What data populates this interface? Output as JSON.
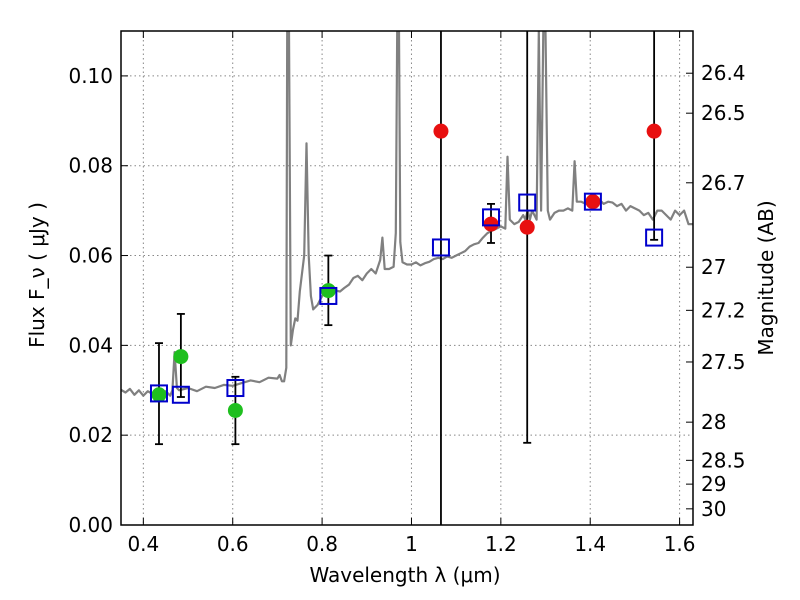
{
  "chart_data": {
    "type": "scatter",
    "xlabel": "Wavelength  λ (μm)",
    "ylabel": "Flux  F_ν  ( μJy )",
    "ylabel_right": "Magnitude (AB)",
    "xlim": [
      0.35,
      1.63
    ],
    "ylim": [
      0.0,
      0.11
    ],
    "grid": true,
    "x_ticks": [
      {
        "value": 0.4,
        "label": "0.4"
      },
      {
        "value": 0.6,
        "label": "0.6"
      },
      {
        "value": 0.8,
        "label": "0.8"
      },
      {
        "value": 1.0,
        "label": "1"
      },
      {
        "value": 1.2,
        "label": "1.2"
      },
      {
        "value": 1.4,
        "label": "1.4"
      },
      {
        "value": 1.6,
        "label": "1.6"
      }
    ],
    "y_ticks": [
      {
        "value": 0.0,
        "label": "0.00"
      },
      {
        "value": 0.02,
        "label": "0.02"
      },
      {
        "value": 0.04,
        "label": "0.04"
      },
      {
        "value": 0.06,
        "label": "0.06"
      },
      {
        "value": 0.08,
        "label": "0.08"
      },
      {
        "value": 0.1,
        "label": "0.10"
      }
    ],
    "right_ticks": [
      {
        "flux": 0.1006,
        "label": "26.4"
      },
      {
        "flux": 0.0917,
        "label": "26.5"
      },
      {
        "flux": 0.0762,
        "label": "26.7"
      },
      {
        "flux": 0.0574,
        "label": "27"
      },
      {
        "flux": 0.0478,
        "label": "27.2"
      },
      {
        "flux": 0.0363,
        "label": "27.5"
      },
      {
        "flux": 0.0229,
        "label": "28"
      },
      {
        "flux": 0.0144,
        "label": "28.5"
      },
      {
        "flux": 0.0091,
        "label": "29"
      },
      {
        "flux": 0.0036,
        "label": "30"
      }
    ],
    "colors": {
      "spectrum": "#808080",
      "green": "#1fbf1f",
      "red": "#e81010",
      "blue": "#0000cc",
      "errorbar": "#000000",
      "grid": "#888888"
    },
    "spectrum": [
      [
        0.35,
        0.0301
      ],
      [
        0.36,
        0.0295
      ],
      [
        0.37,
        0.0303
      ],
      [
        0.38,
        0.029
      ],
      [
        0.39,
        0.03
      ],
      [
        0.4,
        0.0288
      ],
      [
        0.41,
        0.0298
      ],
      [
        0.42,
        0.0292
      ],
      [
        0.43,
        0.03
      ],
      [
        0.44,
        0.0291
      ],
      [
        0.45,
        0.0298
      ],
      [
        0.46,
        0.0288
      ],
      [
        0.465,
        0.03
      ],
      [
        0.47,
        0.0385
      ],
      [
        0.475,
        0.0305
      ],
      [
        0.48,
        0.03
      ],
      [
        0.5,
        0.0305
      ],
      [
        0.52,
        0.0298
      ],
      [
        0.54,
        0.0308
      ],
      [
        0.56,
        0.0305
      ],
      [
        0.58,
        0.0312
      ],
      [
        0.6,
        0.031
      ],
      [
        0.62,
        0.0316
      ],
      [
        0.64,
        0.0322
      ],
      [
        0.66,
        0.0318
      ],
      [
        0.68,
        0.0328
      ],
      [
        0.7,
        0.0326
      ],
      [
        0.705,
        0.0334
      ],
      [
        0.71,
        0.032
      ],
      [
        0.715,
        0.032
      ],
      [
        0.72,
        0.035
      ],
      [
        0.722,
        0.11
      ],
      [
        0.726,
        0.11
      ],
      [
        0.73,
        0.04
      ],
      [
        0.735,
        0.0435
      ],
      [
        0.74,
        0.046
      ],
      [
        0.745,
        0.0455
      ],
      [
        0.75,
        0.052
      ],
      [
        0.755,
        0.056
      ],
      [
        0.76,
        0.06
      ],
      [
        0.765,
        0.085
      ],
      [
        0.77,
        0.06
      ],
      [
        0.775,
        0.051
      ],
      [
        0.78,
        0.048
      ],
      [
        0.79,
        0.049
      ],
      [
        0.8,
        0.051
      ],
      [
        0.81,
        0.052
      ],
      [
        0.82,
        0.0515
      ],
      [
        0.83,
        0.0522
      ],
      [
        0.84,
        0.052
      ],
      [
        0.85,
        0.0528
      ],
      [
        0.86,
        0.0535
      ],
      [
        0.87,
        0.055
      ],
      [
        0.88,
        0.0555
      ],
      [
        0.89,
        0.0545
      ],
      [
        0.9,
        0.056
      ],
      [
        0.91,
        0.057
      ],
      [
        0.92,
        0.056
      ],
      [
        0.93,
        0.059
      ],
      [
        0.935,
        0.064
      ],
      [
        0.94,
        0.057
      ],
      [
        0.95,
        0.057
      ],
      [
        0.96,
        0.0575
      ],
      [
        0.965,
        0.065
      ],
      [
        0.968,
        0.11
      ],
      [
        0.972,
        0.11
      ],
      [
        0.975,
        0.063
      ],
      [
        0.98,
        0.0585
      ],
      [
        0.99,
        0.058
      ],
      [
        1.0,
        0.058
      ],
      [
        1.01,
        0.0585
      ],
      [
        1.02,
        0.0578
      ],
      [
        1.03,
        0.0583
      ],
      [
        1.04,
        0.0586
      ],
      [
        1.05,
        0.0592
      ],
      [
        1.06,
        0.0595
      ],
      [
        1.07,
        0.0592
      ],
      [
        1.08,
        0.0598
      ],
      [
        1.09,
        0.0595
      ],
      [
        1.1,
        0.06
      ],
      [
        1.11,
        0.0605
      ],
      [
        1.12,
        0.061
      ],
      [
        1.13,
        0.062
      ],
      [
        1.14,
        0.0625
      ],
      [
        1.15,
        0.0628
      ],
      [
        1.16,
        0.064
      ],
      [
        1.17,
        0.065
      ],
      [
        1.18,
        0.0655
      ],
      [
        1.19,
        0.066
      ],
      [
        1.2,
        0.0665
      ],
      [
        1.21,
        0.066
      ],
      [
        1.215,
        0.082
      ],
      [
        1.22,
        0.068
      ],
      [
        1.23,
        0.067
      ],
      [
        1.24,
        0.0675
      ],
      [
        1.25,
        0.069
      ],
      [
        1.255,
        0.068
      ],
      [
        1.26,
        0.07
      ],
      [
        1.265,
        0.068
      ],
      [
        1.27,
        0.07
      ],
      [
        1.275,
        0.069
      ],
      [
        1.28,
        0.068
      ],
      [
        1.285,
        0.11
      ],
      [
        1.29,
        0.07
      ],
      [
        1.295,
        0.11
      ],
      [
        1.3,
        0.11
      ],
      [
        1.305,
        0.07
      ],
      [
        1.31,
        0.068
      ],
      [
        1.32,
        0.0695
      ],
      [
        1.33,
        0.07
      ],
      [
        1.34,
        0.07
      ],
      [
        1.35,
        0.0705
      ],
      [
        1.36,
        0.07
      ],
      [
        1.365,
        0.081
      ],
      [
        1.37,
        0.072
      ],
      [
        1.38,
        0.072
      ],
      [
        1.39,
        0.0715
      ],
      [
        1.4,
        0.072
      ],
      [
        1.41,
        0.0718
      ],
      [
        1.42,
        0.0725
      ],
      [
        1.43,
        0.0715
      ],
      [
        1.44,
        0.072
      ],
      [
        1.45,
        0.0718
      ],
      [
        1.46,
        0.071
      ],
      [
        1.47,
        0.0715
      ],
      [
        1.48,
        0.07
      ],
      [
        1.49,
        0.071
      ],
      [
        1.5,
        0.0705
      ],
      [
        1.51,
        0.07
      ],
      [
        1.52,
        0.069
      ],
      [
        1.53,
        0.0695
      ],
      [
        1.54,
        0.068
      ],
      [
        1.55,
        0.07
      ],
      [
        1.56,
        0.07
      ],
      [
        1.57,
        0.069
      ],
      [
        1.58,
        0.068
      ],
      [
        1.59,
        0.07
      ],
      [
        1.6,
        0.069
      ],
      [
        1.61,
        0.07
      ],
      [
        1.62,
        0.067
      ],
      [
        1.63,
        0.067
      ]
    ],
    "green_points": [
      {
        "x": 0.435,
        "y": 0.029,
        "err_low": 0.018,
        "err_high": 0.0405
      },
      {
        "x": 0.484,
        "y": 0.0375,
        "err_low": 0.0285,
        "err_high": 0.047
      },
      {
        "x": 0.606,
        "y": 0.0255,
        "err_low": 0.018,
        "err_high": 0.033
      },
      {
        "x": 0.814,
        "y": 0.0522,
        "err_low": 0.0445,
        "err_high": 0.06
      }
    ],
    "red_points": [
      {
        "x": 1.066,
        "y": 0.0877,
        "err_low": 0.0,
        "err_high": 0.11
      },
      {
        "x": 1.178,
        "y": 0.067,
        "err_low": 0.0628,
        "err_high": 0.0715
      },
      {
        "x": 1.259,
        "y": 0.0663,
        "err_low": 0.0183,
        "err_high": 0.11
      },
      {
        "x": 1.406,
        "y": 0.072
      },
      {
        "x": 1.543,
        "y": 0.0877,
        "err_low": 0.0635,
        "err_high": 0.11
      }
    ],
    "model_squares": [
      {
        "x": 0.435,
        "y": 0.0293
      },
      {
        "x": 0.484,
        "y": 0.029
      },
      {
        "x": 0.606,
        "y": 0.0305
      },
      {
        "x": 0.814,
        "y": 0.051
      },
      {
        "x": 1.066,
        "y": 0.0618
      },
      {
        "x": 1.178,
        "y": 0.0685
      },
      {
        "x": 1.259,
        "y": 0.0718
      },
      {
        "x": 1.406,
        "y": 0.072
      },
      {
        "x": 1.543,
        "y": 0.064
      }
    ]
  }
}
